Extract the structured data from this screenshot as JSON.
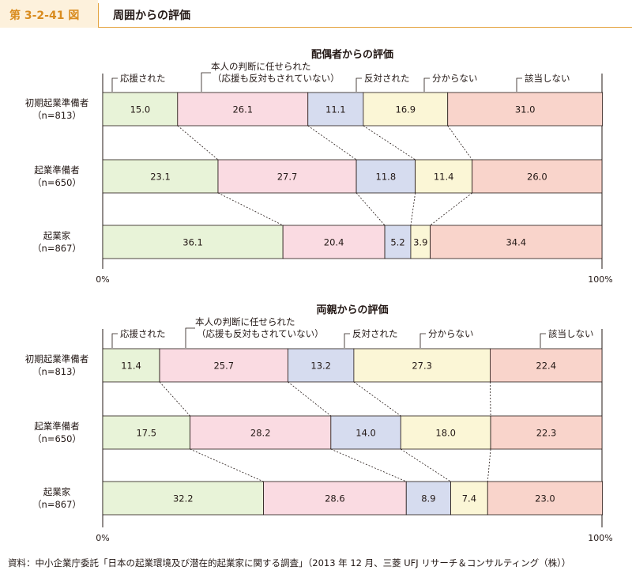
{
  "header": {
    "figure_number": "第 3-2-41 図",
    "title": "周囲からの評価"
  },
  "chart_data": [
    {
      "type": "bar",
      "stacked": "100%",
      "orientation": "horizontal",
      "title": "配偶者からの評価",
      "categories": [
        {
          "name": "初期起業準備者",
          "n": "（n=813）"
        },
        {
          "name": "起業準備者",
          "n": "（n=650）"
        },
        {
          "name": "起業家",
          "n": "（n=867）"
        }
      ],
      "series": [
        {
          "name": "応援された",
          "values": [
            15.0,
            23.1,
            36.1
          ],
          "color": "#e8f3d8"
        },
        {
          "name": "本人の判断に任せられた（応援も反対もされていない）",
          "label_lines": [
            "本人の判断に任せられた",
            "（応援も反対もされていない）"
          ],
          "values": [
            26.1,
            27.7,
            20.4
          ],
          "color": "#fadbe2"
        },
        {
          "name": "反対された",
          "values": [
            11.1,
            11.8,
            5.2
          ],
          "color": "#d6dcef"
        },
        {
          "name": "分からない",
          "values": [
            16.9,
            11.4,
            3.9
          ],
          "color": "#fbf6d6"
        },
        {
          "name": "該当しない",
          "values": [
            31.0,
            26.0,
            34.4
          ],
          "color": "#f9d4cb"
        }
      ],
      "axis": {
        "min_label": "0%",
        "max_label": "100%"
      },
      "xlim": [
        0,
        100
      ]
    },
    {
      "type": "bar",
      "stacked": "100%",
      "orientation": "horizontal",
      "title": "両親からの評価",
      "categories": [
        {
          "name": "初期起業準備者",
          "n": "（n=813）"
        },
        {
          "name": "起業準備者",
          "n": "（n=650）"
        },
        {
          "name": "起業家",
          "n": "（n=867）"
        }
      ],
      "series": [
        {
          "name": "応援された",
          "values": [
            11.4,
            17.5,
            32.2
          ],
          "color": "#e8f3d8"
        },
        {
          "name": "本人の判断に任せられた（応援も反対もされていない）",
          "label_lines": [
            "本人の判断に任せられた",
            "（応援も反対もされていない）"
          ],
          "values": [
            25.7,
            28.2,
            28.6
          ],
          "color": "#fadbe2"
        },
        {
          "name": "反対された",
          "values": [
            13.2,
            14.0,
            8.9
          ],
          "color": "#d6dcef"
        },
        {
          "name": "分からない",
          "values": [
            27.3,
            18.0,
            7.4
          ],
          "color": "#fbf6d6"
        },
        {
          "name": "該当しない",
          "values": [
            22.4,
            22.3,
            23.0
          ],
          "color": "#f9d4cb"
        }
      ],
      "axis": {
        "min_label": "0%",
        "max_label": "100%"
      },
      "xlim": [
        0,
        100
      ]
    }
  ],
  "source": "資料：中小企業庁委託「日本の起業環境及び潜在的起業家に関する調査」（2013 年 12 月、三菱 UFJ リサーチ＆コンサルティング（株））"
}
